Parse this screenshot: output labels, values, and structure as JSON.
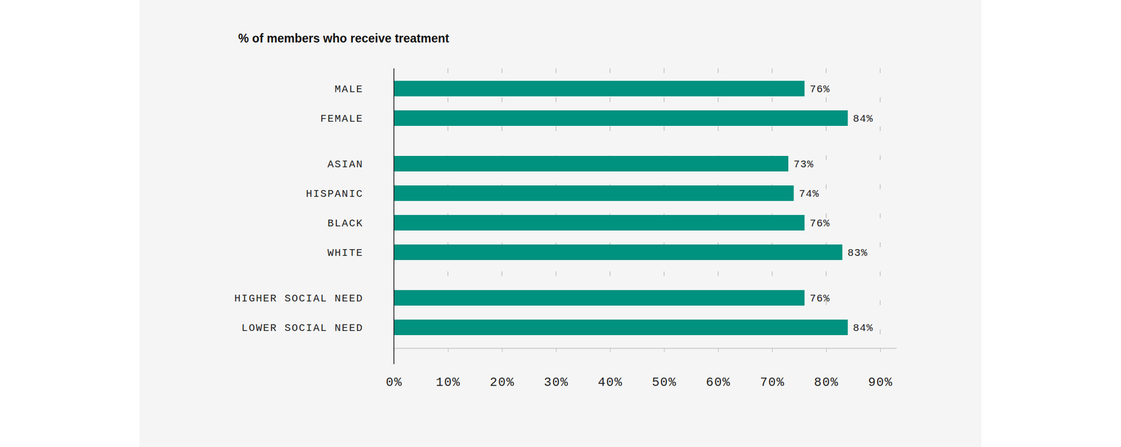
{
  "chart_data": {
    "type": "bar",
    "title": "% of members who receive treatment",
    "orientation": "horizontal",
    "categories": [
      "MALE",
      "FEMALE",
      "ASIAN",
      "HISPANIC",
      "BLACK",
      "WHITE",
      "HIGHER SOCIAL NEED",
      "LOWER SOCIAL NEED"
    ],
    "values": [
      76,
      84,
      73,
      74,
      76,
      83,
      76,
      84
    ],
    "value_labels": [
      "76%",
      "84%",
      "73%",
      "74%",
      "76%",
      "83%",
      "76%",
      "84%"
    ],
    "data_labels": true,
    "color": "#00917f",
    "xlim": [
      0,
      93
    ],
    "xticks": [
      {
        "value": 0,
        "label": "0%"
      },
      {
        "value": 10,
        "label": "10%"
      },
      {
        "value": 20,
        "label": "20%"
      },
      {
        "value": 30,
        "label": "30%"
      },
      {
        "value": 40,
        "label": "40%"
      },
      {
        "value": 50,
        "label": "50%"
      },
      {
        "value": 60,
        "label": "60%"
      },
      {
        "value": 70,
        "label": "70%"
      },
      {
        "value": 80,
        "label": "80%"
      },
      {
        "value": 90,
        "label": "90%"
      }
    ],
    "grid": true
  }
}
